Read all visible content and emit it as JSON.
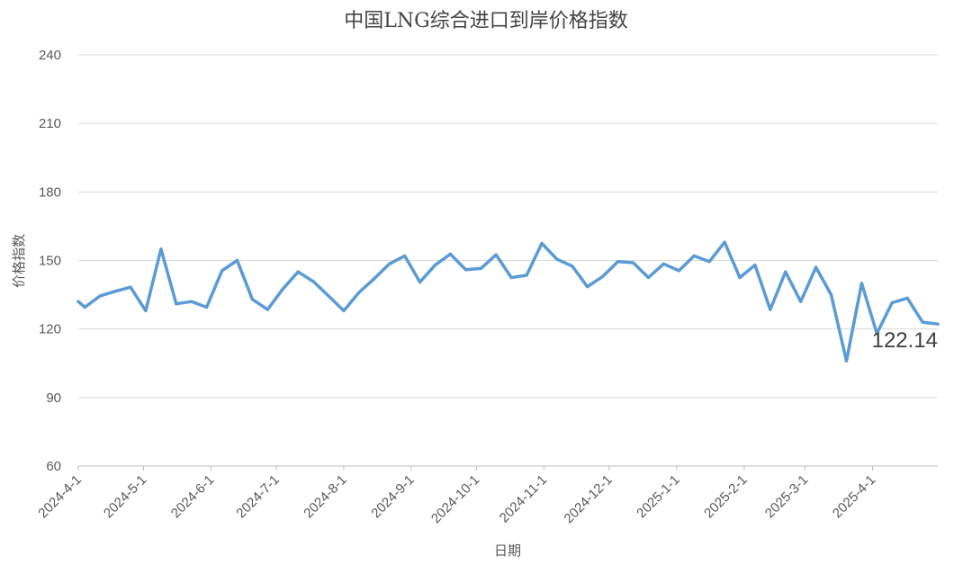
{
  "chart_data": {
    "type": "line",
    "title": "中国LNG综合进口到岸价格指数",
    "xlabel": "日期",
    "ylabel": "价格指数",
    "ylim": [
      60,
      240
    ],
    "yticks": [
      60,
      90,
      120,
      150,
      180,
      210,
      240
    ],
    "x_tick_labels": [
      "2024-4-1",
      "2024-5-1",
      "2024-6-1",
      "2024-7-1",
      "2024-8-1",
      "2024-9-1",
      "2024-10-1",
      "2024-11-1",
      "2024-12-1",
      "2025-1-1",
      "2025-2-1",
      "2025-3-1",
      "2025-4-1"
    ],
    "grid": true,
    "legend": "none",
    "line_color": "#5B9BD5",
    "series": [
      {
        "x": [
          "2024-4-1",
          "2024-4-4",
          "2024-4-11",
          "2024-4-18",
          "2024-4-25",
          "2024-5-2",
          "2024-5-9",
          "2024-5-16",
          "2024-5-23",
          "2024-5-30",
          "2024-6-6",
          "2024-6-13",
          "2024-6-20",
          "2024-6-27",
          "2024-7-4",
          "2024-7-11",
          "2024-7-18",
          "2024-7-25",
          "2024-8-1",
          "2024-8-8",
          "2024-8-15",
          "2024-8-22",
          "2024-8-29",
          "2024-9-5",
          "2024-9-12",
          "2024-9-19",
          "2024-9-26",
          "2024-10-3",
          "2024-10-10",
          "2024-10-17",
          "2024-10-24",
          "2024-10-31",
          "2024-11-7",
          "2024-11-14",
          "2024-11-21",
          "2024-11-28",
          "2024-12-5",
          "2024-12-12",
          "2024-12-19",
          "2024-12-26",
          "2025-1-2",
          "2025-1-9",
          "2025-1-16",
          "2025-1-23",
          "2025-1-30",
          "2025-2-6",
          "2025-2-13",
          "2025-2-20",
          "2025-2-27",
          "2025-3-6",
          "2025-3-13",
          "2025-3-20",
          "2025-3-27",
          "2025-4-3",
          "2025-4-10",
          "2025-4-17",
          "2025-4-24",
          "2025-5-1"
        ],
        "values": [
          132,
          129.5,
          134.5,
          136.5,
          138.3,
          128,
          155,
          131,
          132,
          129.5,
          145.5,
          150,
          133,
          128.5,
          137.5,
          145,
          140.8,
          134.5,
          128,
          136,
          142,
          148.5,
          152,
          140.5,
          148,
          152.8,
          146,
          146.5,
          152.5,
          142.5,
          143.5,
          157.5,
          150.5,
          147.5,
          138.5,
          143,
          149.5,
          149,
          142.5,
          148.5,
          145.5,
          152,
          149.5,
          158,
          142.5,
          148,
          128.5,
          145,
          132,
          147,
          135,
          106,
          140,
          118,
          131.5,
          133.5,
          123,
          122.14
        ]
      }
    ],
    "annotations": [
      {
        "text": "122.14",
        "x": "2025-5-1",
        "y": 122.14
      }
    ]
  }
}
